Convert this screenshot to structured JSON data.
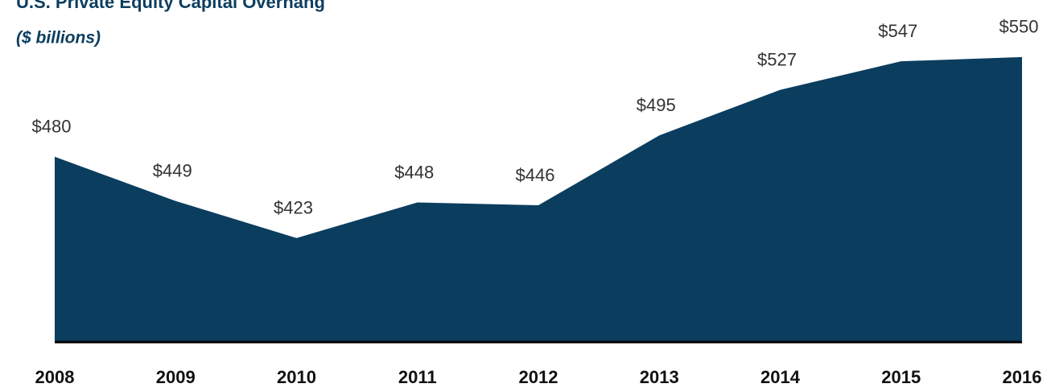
{
  "chart_data": {
    "type": "area",
    "title": "U.S. Private Equity Capital Overhang",
    "subtitle": "($ billions)",
    "categories": [
      "2008",
      "2009",
      "2010",
      "2011",
      "2012",
      "2013",
      "2014",
      "2015",
      "2016"
    ],
    "values": [
      480,
      449,
      423,
      448,
      446,
      495,
      527,
      547,
      550
    ],
    "value_labels": [
      "$480",
      "$449",
      "$423",
      "$448",
      "$446",
      "$495",
      "$527",
      "$547",
      "$550"
    ],
    "color": "#0b3d5f",
    "ylim": [
      350,
      590
    ]
  }
}
